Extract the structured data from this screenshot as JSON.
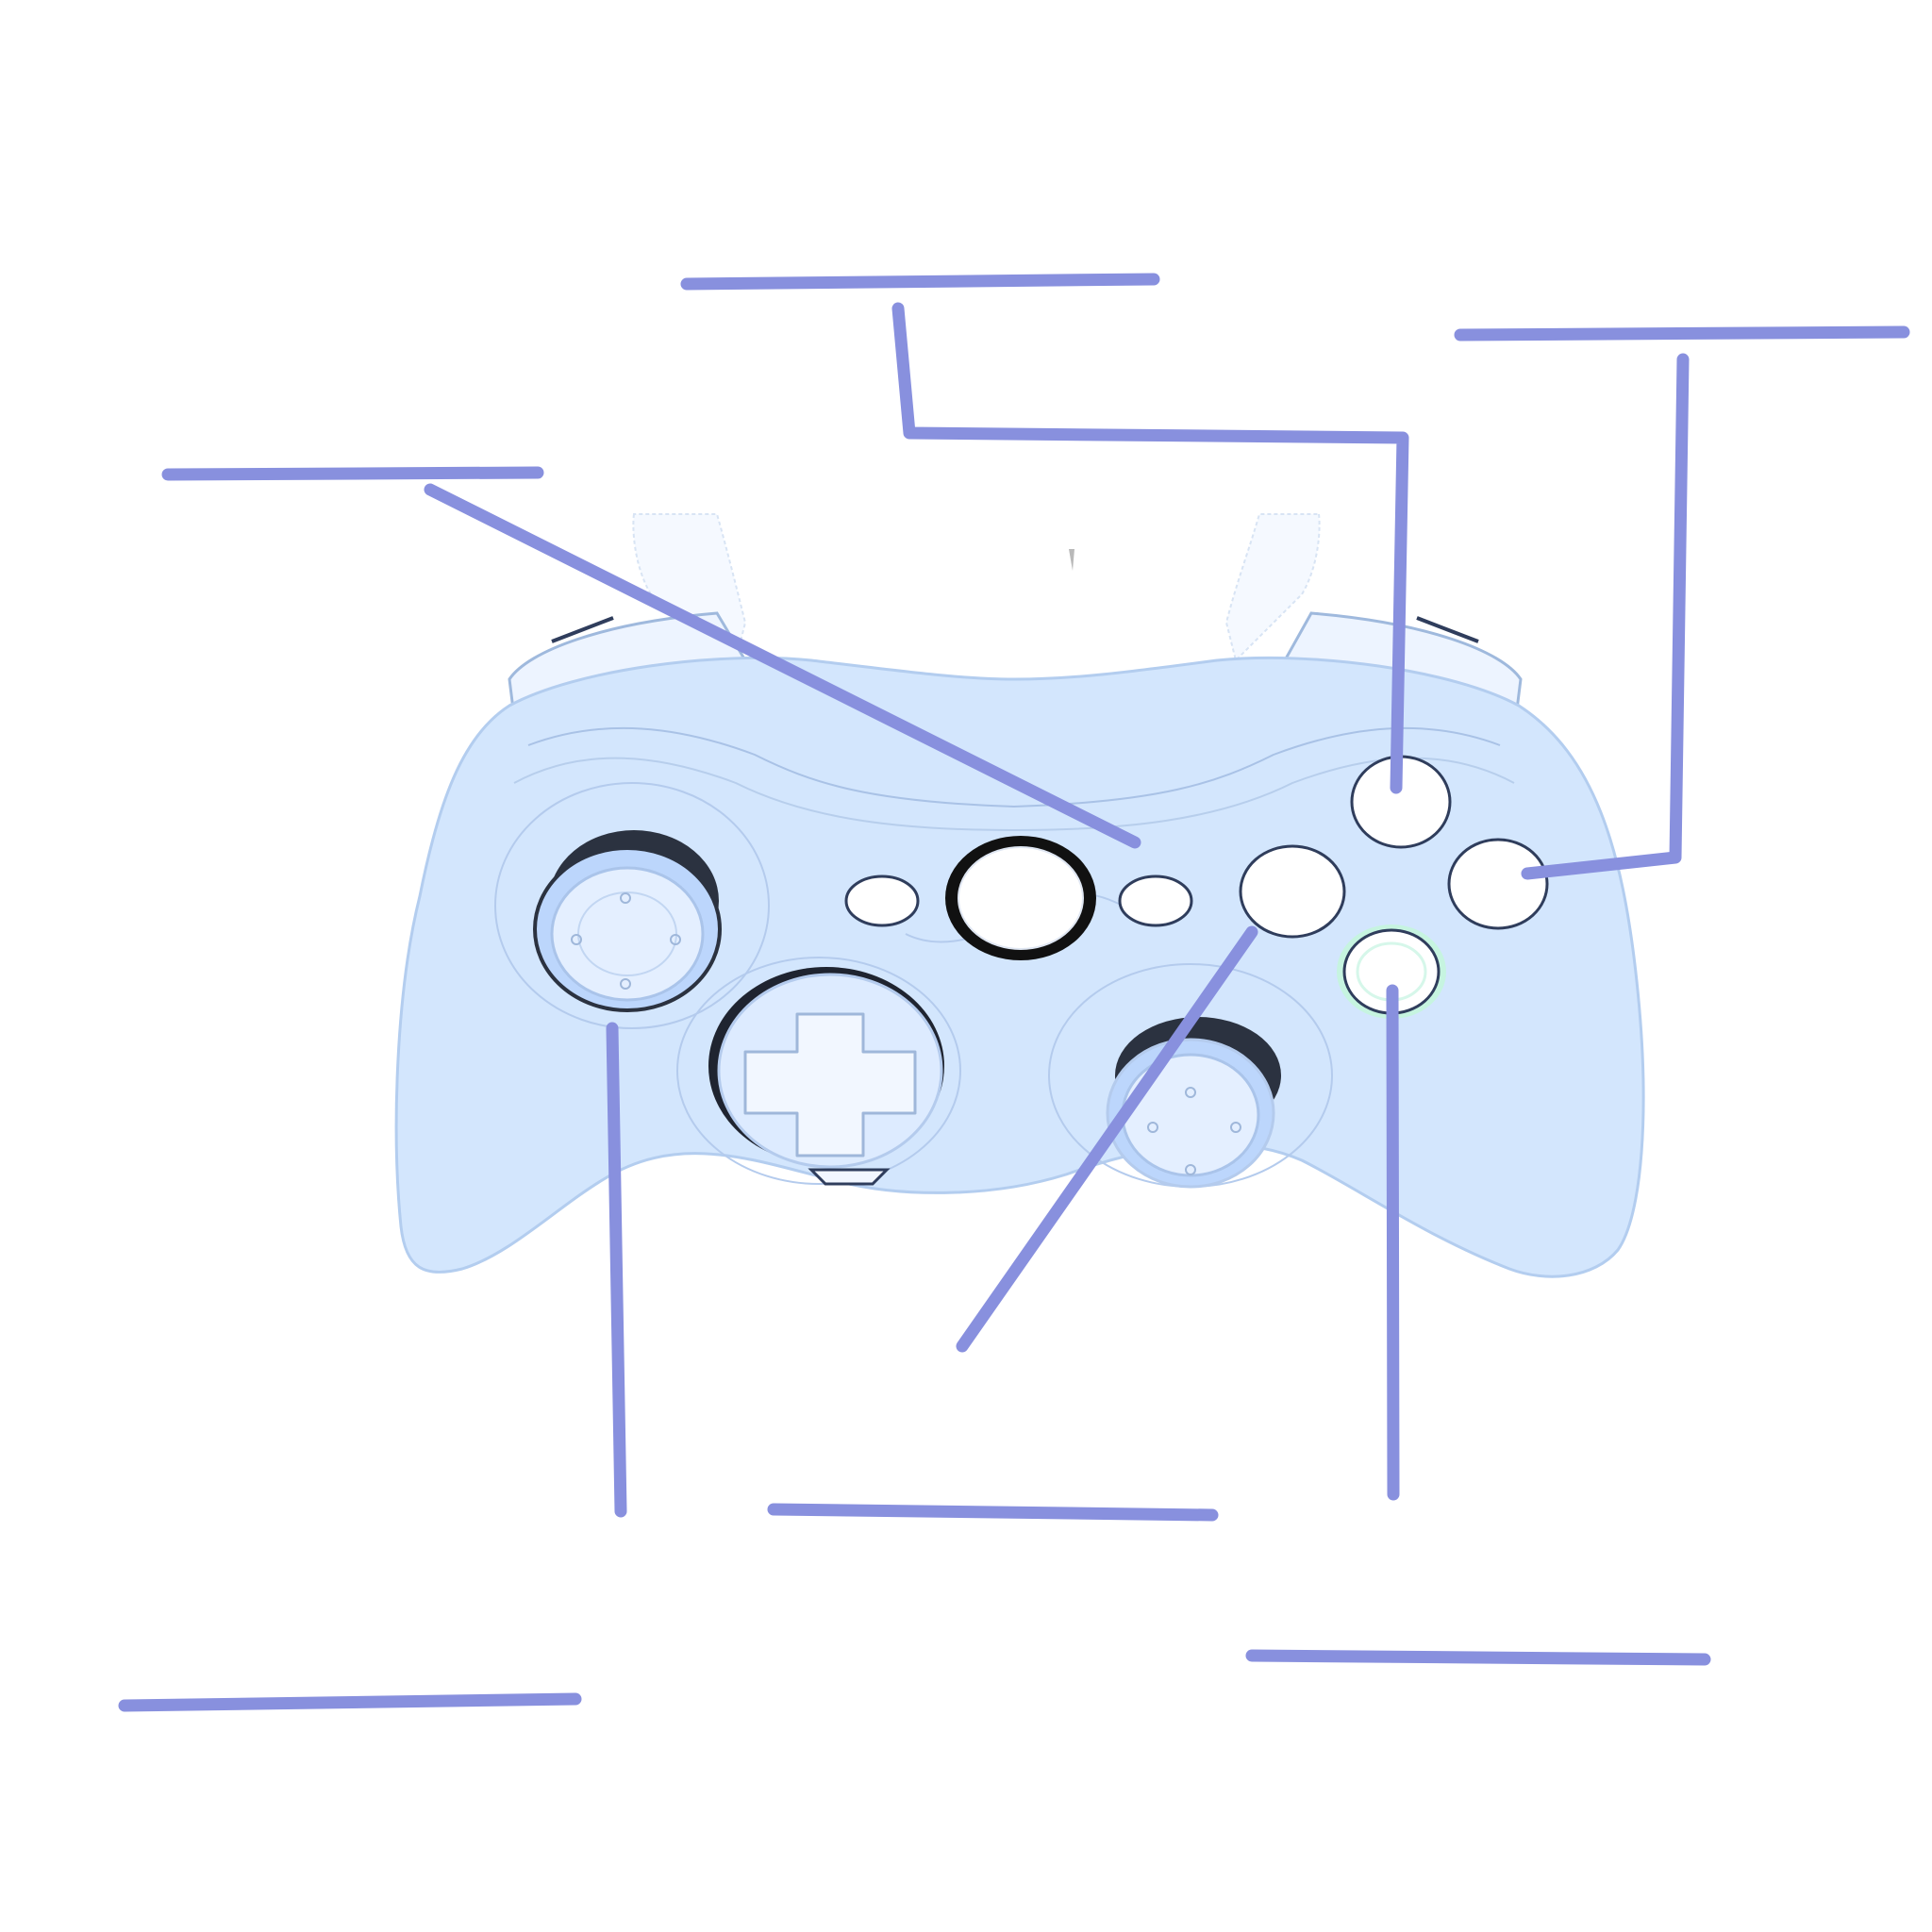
{
  "diagram": {
    "subject": "game-controller",
    "labels": [
      {
        "id": "top-left-label",
        "text": ""
      },
      {
        "id": "top-center-label",
        "text": ""
      },
      {
        "id": "top-right-label",
        "text": ""
      },
      {
        "id": "bottom-center-label",
        "text": ""
      },
      {
        "id": "bottom-left-label",
        "text": ""
      },
      {
        "id": "bottom-right-label",
        "text": ""
      }
    ]
  },
  "colors": {
    "leader_line": "#8890de",
    "controller_body": "#d3e6fd",
    "controller_outline": "#b3cdef",
    "button_fill": "#ffffff",
    "button_outline": "#2f3d5c",
    "stick_fill": "#e4efff",
    "stick_base": "#2b3240",
    "guide_ring": "#161616",
    "green_glow": "#c6f4e0"
  }
}
